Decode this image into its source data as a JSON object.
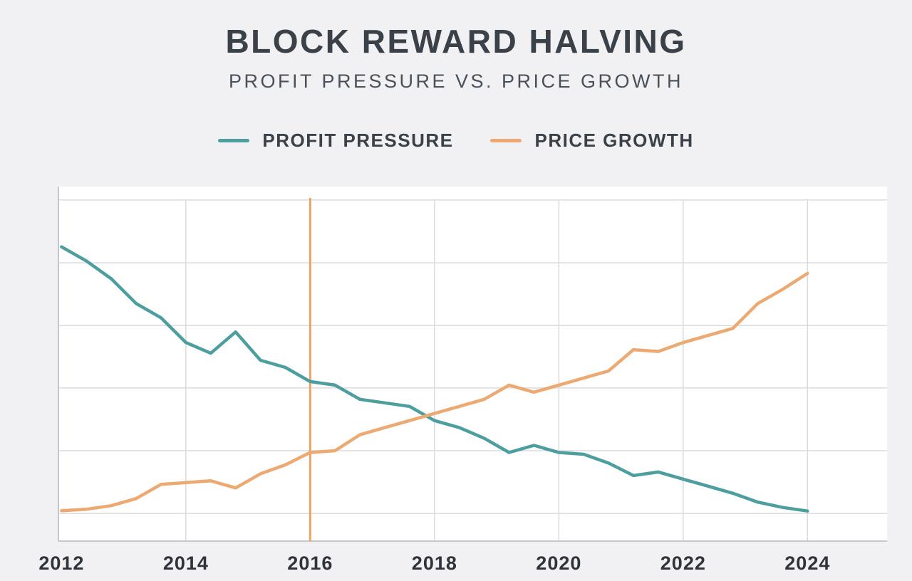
{
  "page": {
    "background": "#f1f1f3"
  },
  "header": {
    "title": "BLOCK REWARD HALVING",
    "subtitle": "PROFIT PRESSURE VS. PRICE GROWTH"
  },
  "legend": {
    "items": [
      {
        "label": "PROFIT PRESSURE",
        "color": "#4d9e9e"
      },
      {
        "label": "PRICE GROWTH",
        "color": "#ecaa72"
      }
    ]
  },
  "chart_data": {
    "type": "line",
    "title": "BLOCK REWARD HALVING",
    "subtitle": "PROFIT PRESSURE VS. PRICE GROWTH",
    "x": [
      2012,
      2012.4,
      2012.8,
      2013.2,
      2013.6,
      2014,
      2014.4,
      2014.8,
      2015.2,
      2015.6,
      2016,
      2016.4,
      2016.8,
      2017.2,
      2017.6,
      2018,
      2018.4,
      2018.8,
      2019.2,
      2019.6,
      2020,
      2020.4,
      2020.8,
      2021.2,
      2021.6,
      2022,
      2022.4,
      2022.8,
      2023.2,
      2023.6,
      2024
    ],
    "series": [
      {
        "name": "PROFIT PRESSURE",
        "color": "#4d9e9e",
        "values": [
          83,
          79,
          74,
          67,
          63,
          56,
          53,
          59,
          51,
          49,
          45,
          44,
          40,
          39,
          38,
          34,
          32,
          29,
          25,
          27,
          25,
          24.5,
          22,
          18.5,
          19.5,
          17.5,
          15.5,
          13.5,
          11,
          9.5,
          8.5
        ]
      },
      {
        "name": "PRICE GROWTH",
        "color": "#ecaa72",
        "values": [
          8.6,
          9,
          10,
          12,
          16,
          16.5,
          17,
          15,
          19,
          21.5,
          25,
          25.5,
          30,
          32,
          34,
          36,
          38,
          40,
          44,
          42,
          44,
          46,
          48,
          54,
          53.5,
          56,
          58,
          60,
          67,
          71,
          75.5
        ]
      }
    ],
    "xlim": [
      2011.95,
      2025.28
    ],
    "ylim": [
      0,
      100
    ],
    "x_ticks": [
      {
        "value": 2012,
        "label": "2012"
      },
      {
        "value": 2014,
        "label": "2014"
      },
      {
        "value": 2016,
        "label": "2016"
      },
      {
        "value": 2018,
        "label": "2018"
      },
      {
        "value": 2020,
        "label": "2020"
      },
      {
        "value": 2022,
        "label": "2022"
      },
      {
        "value": 2024,
        "label": "2024"
      }
    ],
    "v_gridlines": [
      2014,
      2016,
      2018,
      2020,
      2022,
      2024
    ],
    "h_gridlines": [
      7.8,
      25.5,
      43.2,
      60.8,
      78.5,
      96.2
    ],
    "annotations": [
      {
        "type": "vline",
        "x": 2016,
        "color": "#e9a466"
      }
    ],
    "grid": true,
    "legend_position": "top",
    "plot_bg": "#ffffff",
    "grid_color": "#d9dbdf",
    "axis_color": "#c3c6cb",
    "tick_label_color": "#2f343b"
  }
}
